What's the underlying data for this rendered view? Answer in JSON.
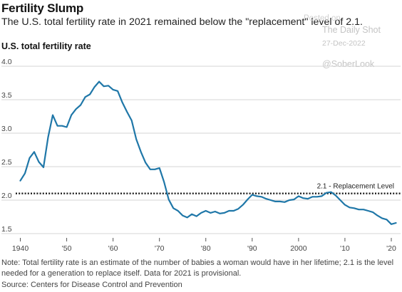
{
  "header": {
    "title": "Fertility Slump",
    "subtitle": "The U.S. total fertility rate in 2021 remained below the \"replacement\" level of 2.1.",
    "chart_label": "U.S. total fertility rate"
  },
  "watermark": {
    "line1": "Posted on",
    "line2": "The Daily Shot",
    "line3": "27-Dec-2022",
    "line4": "@SoberLook"
  },
  "footer": {
    "note": "Note: Total fertility rate is an estimate of the number of babies a woman would have in her lifetime; 2.1 is the level needed for a generation to replace itself. Data for 2021 is provisional.",
    "source": "Source: Centers for Disease Control and Prevention"
  },
  "colors": {
    "line": "#1f77a8",
    "grid": "#d6d6d6",
    "reference": "#111111"
  },
  "chart_data": {
    "type": "line",
    "title": "U.S. total fertility rate",
    "x_tick_labels": [
      "1940",
      "'50",
      "'60",
      "'70",
      "'80",
      "'90",
      "2000",
      "'10",
      "'20"
    ],
    "x_ticks": [
      1940,
      1950,
      1960,
      1970,
      1980,
      1990,
      2000,
      2010,
      2020
    ],
    "y_tick_labels": [
      "4.0",
      "3.5",
      "3.0",
      "2.5",
      "2.0",
      "1.5"
    ],
    "y_ticks": [
      4.0,
      3.5,
      3.0,
      2.5,
      2.0,
      1.5
    ],
    "xlim": [
      1939,
      2022
    ],
    "ylim": [
      1.5,
      4.0
    ],
    "grid": true,
    "reference_line": {
      "value": 2.1,
      "label": "2.1 - Replacement Level"
    },
    "series": [
      {
        "name": "U.S. total fertility rate",
        "x": [
          1940,
          1941,
          1942,
          1943,
          1944,
          1945,
          1946,
          1947,
          1948,
          1949,
          1950,
          1951,
          1952,
          1953,
          1954,
          1955,
          1956,
          1957,
          1958,
          1959,
          1960,
          1961,
          1962,
          1963,
          1964,
          1965,
          1966,
          1967,
          1968,
          1969,
          1970,
          1971,
          1972,
          1973,
          1974,
          1975,
          1976,
          1977,
          1978,
          1979,
          1980,
          1981,
          1982,
          1983,
          1984,
          1985,
          1986,
          1987,
          1988,
          1989,
          1990,
          1991,
          1992,
          1993,
          1994,
          1995,
          1996,
          1997,
          1998,
          1999,
          2000,
          2001,
          2002,
          2003,
          2004,
          2005,
          2006,
          2007,
          2008,
          2009,
          2010,
          2011,
          2012,
          2013,
          2014,
          2015,
          2016,
          2017,
          2018,
          2019,
          2020,
          2021
        ],
        "values": [
          2.29,
          2.4,
          2.63,
          2.72,
          2.57,
          2.49,
          2.94,
          3.27,
          3.11,
          3.11,
          3.09,
          3.27,
          3.36,
          3.42,
          3.54,
          3.58,
          3.69,
          3.77,
          3.7,
          3.71,
          3.65,
          3.63,
          3.46,
          3.32,
          3.19,
          2.91,
          2.72,
          2.56,
          2.46,
          2.46,
          2.48,
          2.27,
          2.01,
          1.88,
          1.84,
          1.77,
          1.74,
          1.79,
          1.76,
          1.81,
          1.84,
          1.81,
          1.83,
          1.8,
          1.81,
          1.84,
          1.84,
          1.87,
          1.93,
          2.01,
          2.08,
          2.06,
          2.05,
          2.02,
          2.0,
          1.98,
          1.98,
          1.97,
          2.0,
          2.01,
          2.06,
          2.03,
          2.02,
          2.05,
          2.05,
          2.06,
          2.11,
          2.12,
          2.07,
          2.0,
          1.93,
          1.89,
          1.88,
          1.86,
          1.86,
          1.84,
          1.82,
          1.77,
          1.73,
          1.71,
          1.64,
          1.66
        ]
      }
    ]
  }
}
